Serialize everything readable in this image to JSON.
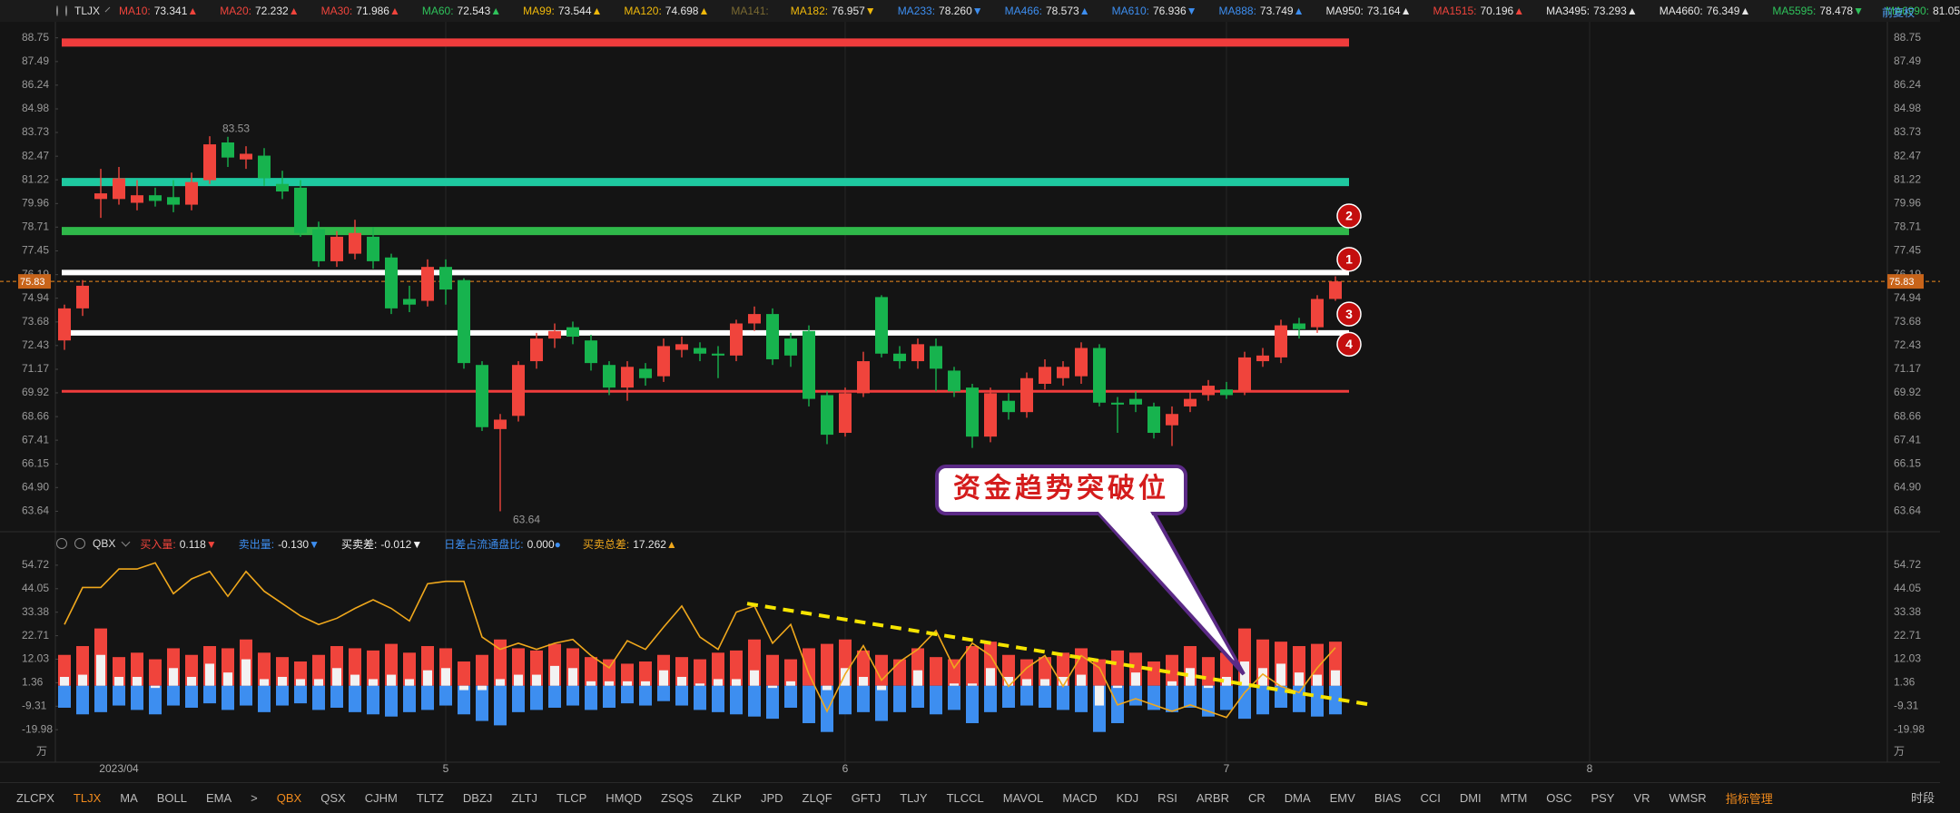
{
  "chart_data": [
    {
      "type": "candlestick",
      "title": "TLJX",
      "up_color": "#f0443c",
      "down_color": "#17b34e",
      "ylim": [
        62.7,
        89.6
      ],
      "yticks": [
        88.75,
        87.49,
        86.24,
        84.98,
        83.73,
        82.47,
        81.22,
        79.96,
        78.71,
        77.45,
        76.19,
        74.94,
        73.68,
        72.43,
        71.17,
        69.92,
        68.66,
        67.41,
        66.15,
        {
          "value": 64.9,
          "label": "64.90"
        },
        63.64
      ],
      "ma_legend": [
        {
          "label": "MA10:",
          "value": "73.341",
          "arrow": "▲",
          "color": "#f0443c"
        },
        {
          "label": "MA20:",
          "value": "72.232",
          "arrow": "▲",
          "color": "#f0443c"
        },
        {
          "label": "MA30:",
          "value": "71.986",
          "arrow": "▲",
          "color": "#f0443c"
        },
        {
          "label": "MA60:",
          "value": "72.543",
          "arrow": "▲",
          "color": "#2fc25b"
        },
        {
          "label": "MA99:",
          "value": "73.544",
          "arrow": "▲",
          "color": "#f0b90b"
        },
        {
          "label": "MA120:",
          "value": "74.698",
          "arrow": "▲",
          "color": "#f0b90b"
        },
        {
          "label": "MA141:",
          "color": "#7a6a32"
        },
        {
          "label": "MA182:",
          "value": "76.957",
          "arrow": "▼",
          "color": "#f0b90b"
        },
        {
          "label": "MA233:",
          "value": "78.260",
          "arrow": "▼",
          "color": "#3d8ef0"
        },
        {
          "label": "MA466:",
          "value": "78.573",
          "arrow": "▲",
          "color": "#3d8ef0"
        },
        {
          "label": "MA610:",
          "value": "76.936",
          "arrow": "▼",
          "color": "#3d8ef0"
        },
        {
          "label": "MA888:",
          "value": "73.749",
          "arrow": "▲",
          "color": "#3d8ef0"
        },
        {
          "label": "MA950:",
          "value": "73.164",
          "arrow": "▲",
          "color": "#e6e6e6"
        },
        {
          "label": "MA1515:",
          "value": "70.196",
          "arrow": "▲",
          "color": "#f0443c"
        },
        {
          "label": "MA3495:",
          "value": "73.293",
          "arrow": "▲",
          "color": "#e6e6e6"
        },
        {
          "label": "MA4660:",
          "value": "76.349",
          "arrow": "▲",
          "color": "#e6e6e6"
        },
        {
          "label": "MA5595:",
          "value": "78.478",
          "arrow": "▼",
          "color": "#2fc25b"
        },
        {
          "label": "MA6990:",
          "value": "81.05",
          "color": "#2fc25b"
        }
      ],
      "open": [
        72.7,
        74.4,
        80.2,
        80.2,
        80.0,
        80.4,
        80.3,
        79.9,
        81.2,
        83.2,
        82.3,
        82.5,
        81.0,
        80.8,
        78.6,
        76.9,
        77.3,
        78.2,
        77.1,
        74.9,
        74.8,
        76.6,
        75.9,
        71.4,
        68.0,
        68.7,
        71.6,
        72.8,
        73.4,
        72.7,
        71.4,
        70.2,
        71.2,
        70.8,
        72.2,
        72.3,
        72.0,
        71.9,
        73.6,
        74.1,
        72.8,
        73.2,
        69.8,
        67.8,
        69.9,
        75.0,
        72.0,
        71.6,
        72.4,
        71.1,
        70.2,
        67.6,
        69.5,
        68.9,
        70.4,
        70.7,
        70.8,
        72.3,
        69.4,
        69.6,
        69.2,
        68.2,
        69.2,
        69.8,
        70.1,
        70.0,
        71.6,
        71.8,
        73.6,
        73.4,
        74.9
      ],
      "high": [
        74.6,
        75.9,
        81.8,
        81.9,
        81.2,
        80.8,
        81.2,
        81.6,
        83.53,
        83.5,
        83.0,
        82.9,
        81.7,
        81.2,
        79.0,
        78.5,
        79.1,
        78.7,
        77.3,
        75.6,
        77.0,
        77.0,
        76.0,
        71.6,
        68.8,
        71.6,
        73.1,
        73.6,
        73.7,
        73.0,
        71.6,
        71.6,
        71.5,
        72.8,
        72.9,
        72.6,
        72.4,
        73.8,
        74.5,
        74.4,
        73.1,
        73.5,
        70.0,
        70.2,
        72.1,
        75.1,
        72.4,
        72.8,
        72.8,
        71.3,
        70.4,
        70.2,
        69.9,
        71.0,
        71.7,
        71.6,
        72.6,
        72.5,
        69.7,
        70.0,
        69.4,
        69.2,
        70.0,
        70.6,
        70.5,
        72.1,
        72.3,
        73.8,
        73.9,
        75.1,
        76.1
      ],
      "low": [
        72.2,
        74.0,
        79.2,
        79.9,
        79.6,
        79.8,
        79.5,
        79.6,
        81.0,
        81.9,
        81.8,
        80.9,
        80.2,
        78.2,
        76.6,
        76.6,
        77.0,
        76.5,
        74.1,
        74.2,
        74.5,
        74.6,
        71.2,
        67.9,
        63.64,
        68.4,
        71.2,
        72.3,
        72.5,
        71.1,
        69.8,
        69.5,
        70.3,
        70.5,
        71.8,
        71.6,
        70.7,
        71.6,
        73.2,
        71.4,
        71.3,
        69.2,
        67.2,
        67.6,
        69.7,
        71.8,
        71.2,
        71.2,
        70.0,
        69.7,
        67.0,
        67.3,
        68.5,
        68.6,
        70.1,
        70.3,
        70.4,
        69.2,
        67.8,
        68.9,
        67.5,
        67.1,
        68.9,
        69.5,
        69.6,
        69.8,
        71.3,
        71.5,
        72.8,
        73.1,
        74.8
      ],
      "close": [
        74.4,
        75.6,
        80.5,
        81.3,
        80.4,
        80.1,
        79.9,
        81.1,
        83.1,
        82.4,
        82.6,
        81.3,
        80.6,
        78.4,
        76.9,
        78.2,
        78.4,
        76.9,
        74.4,
        74.6,
        76.6,
        75.4,
        71.5,
        68.1,
        68.5,
        71.4,
        72.8,
        73.2,
        72.9,
        71.5,
        70.2,
        71.3,
        70.7,
        72.4,
        72.5,
        72.0,
        71.9,
        73.6,
        74.1,
        71.7,
        71.9,
        69.6,
        67.7,
        69.9,
        71.6,
        72.0,
        71.6,
        72.5,
        71.2,
        70.0,
        67.6,
        69.9,
        68.9,
        70.7,
        71.3,
        71.3,
        72.3,
        69.4,
        69.3,
        69.3,
        67.8,
        68.8,
        69.6,
        70.3,
        69.8,
        71.8,
        71.9,
        73.5,
        73.3,
        74.9,
        75.83
      ],
      "price_line_color": "#f08a1c",
      "levels": [
        {
          "value": 88.5,
          "color": "#f03c3c",
          "weight": "bold"
        },
        {
          "value": 81.1,
          "color": "#1ec9a0",
          "weight": "bold"
        },
        {
          "value": 78.5,
          "color": "#2fb84a",
          "weight": "bold"
        },
        {
          "value": 76.3,
          "color": "#ffffff",
          "weight": "normal"
        },
        {
          "value": 73.1,
          "color": "#ffffff",
          "weight": "normal"
        },
        {
          "value": 70.0,
          "color": "#f03c3c",
          "weight": "thin"
        }
      ],
      "markers": [
        {
          "label": "1",
          "value": 77.0
        },
        {
          "label": "2",
          "value": 79.3
        },
        {
          "label": "3",
          "value": 74.1
        },
        {
          "label": "4",
          "value": 72.5
        }
      ],
      "callout": "资金趋势突破位",
      "adjust_button": "前复权"
    },
    {
      "type": "bar",
      "title": "QBX",
      "xlim": [
        -0.5,
        100.4
      ],
      "xticks": [
        {
          "value": 3,
          "label": "2023/04"
        },
        {
          "value": 21,
          "label": "5"
        },
        {
          "value": 43,
          "label": "6"
        },
        {
          "value": 64,
          "label": "7"
        },
        {
          "value": 84,
          "label": "8"
        }
      ],
      "ylim": [
        -33.9,
        58.8
      ],
      "yticks": [
        54.72,
        44.05,
        33.38,
        22.71,
        12.03,
        1.36,
        -9.31,
        -19.98
      ],
      "y_unit": "万",
      "series": [
        {
          "name": "买入量:",
          "current": "0.118",
          "arrow": "▼",
          "color": "#f0443c",
          "values": [
            14,
            18,
            26,
            13,
            15,
            12,
            17,
            14,
            18,
            17,
            21,
            15,
            13,
            11,
            14,
            18,
            17,
            16,
            19,
            15,
            18,
            17,
            11,
            14,
            21,
            17,
            16,
            19,
            17,
            13,
            12,
            10,
            11,
            14,
            13,
            12,
            15,
            16,
            21,
            14,
            12,
            17,
            19,
            21,
            16,
            14,
            12,
            17,
            13,
            12,
            18,
            20,
            14,
            12,
            13,
            15,
            17,
            12,
            16,
            15,
            11,
            14,
            18,
            13,
            15,
            26,
            21,
            20,
            18,
            19,
            20
          ]
        },
        {
          "name": "卖出量:",
          "current": "-0.130",
          "arrow": "▼",
          "color": "#3d8ef0",
          "values": [
            -10,
            -13,
            -12,
            -9,
            -11,
            -13,
            -9,
            -10,
            -8,
            -11,
            -9,
            -12,
            -9,
            -8,
            -11,
            -10,
            -12,
            -13,
            -14,
            -12,
            -11,
            -9,
            -13,
            -16,
            -18,
            -12,
            -11,
            -10,
            -9,
            -11,
            -10,
            -8,
            -9,
            -7,
            -9,
            -11,
            -12,
            -13,
            -14,
            -15,
            -10,
            -17,
            -21,
            -13,
            -12,
            -16,
            -12,
            -10,
            -13,
            -11,
            -17,
            -12,
            -10,
            -9,
            -10,
            -11,
            -12,
            -21,
            -17,
            -9,
            -11,
            -12,
            -10,
            -14,
            -11,
            -15,
            -13,
            -10,
            -12,
            -14,
            -13
          ]
        },
        {
          "name": "买卖差:",
          "current": "-0.012",
          "arrow": "▼",
          "color": "#f2f2f2",
          "values": [
            4,
            5,
            14,
            4,
            4,
            -1,
            8,
            4,
            10,
            6,
            12,
            3,
            4,
            3,
            3,
            8,
            5,
            3,
            5,
            3,
            7,
            8,
            -2,
            -2,
            3,
            5,
            5,
            9,
            8,
            2,
            2,
            2,
            2,
            7,
            4,
            1,
            3,
            3,
            7,
            -1,
            2,
            0,
            -2,
            8,
            4,
            -2,
            0,
            7,
            0,
            1,
            1,
            8,
            4,
            3,
            3,
            4,
            5,
            -9,
            -1,
            6,
            0,
            2,
            8,
            -1,
            4,
            11,
            8,
            10,
            6,
            5,
            7
          ]
        },
        {
          "name": "日差占流通盘比:",
          "current": "0.000",
          "arrow": "●",
          "color": "#3d8ef0",
          "values": null
        },
        {
          "name": "买卖总差:",
          "current": "17.262",
          "arrow": "▲",
          "color": "#f0a81c",
          "line": true,
          "values": [
            27.8,
            44.6,
            44.6,
            53.0,
            53.0,
            55.8,
            41.8,
            48.5,
            51.9,
            40.6,
            51.9,
            42.9,
            37.3,
            31.7,
            27.8,
            30.6,
            35.1,
            39.0,
            35.1,
            29.4,
            46.3,
            47.4,
            47.4,
            22.1,
            16.5,
            19.3,
            16.5,
            19.3,
            21.0,
            13.7,
            8.1,
            20.4,
            16.5,
            26.6,
            36.2,
            22.1,
            16.5,
            33.4,
            36.2,
            19.3,
            27.8,
            5.3,
            -11.6,
            5.3,
            18.2,
            2.5,
            10.9,
            16.5,
            25.0,
            8.1,
            19.3,
            13.7,
            -0.3,
            8.1,
            13.7,
            -0.3,
            13.7,
            8.1,
            -8.7,
            -5.9,
            -8.7,
            -11.6,
            -8.7,
            -11.6,
            -14.4,
            -3.1,
            5.3,
            -0.3,
            -3.1,
            8.1,
            17.3
          ]
        }
      ],
      "trendline": {
        "x": [
          37.6,
          72
        ],
        "values": [
          37.3,
          -8.7
        ],
        "color": "#f5e400"
      }
    }
  ],
  "tabs": [
    "ZLCPX",
    "TLJX",
    "MA",
    "BOLL",
    "EMA",
    ">",
    "QBX",
    "QSX",
    "CJHM",
    "TLTZ",
    "DBZJ",
    "ZLTJ",
    "TLCP",
    "HMQD",
    "ZSQS",
    "ZLKP",
    "JPD",
    "ZLQF",
    "GFTJ",
    "TLJY",
    "TLCCL",
    "MAVOL",
    "MACD",
    "KDJ",
    "RSI",
    "ARBR",
    "CR",
    "DMA",
    "EMV",
    "BIAS",
    "CCI",
    "DMI",
    "MTM",
    "OSC",
    "PSY",
    "VR",
    "WMSR",
    "指标管理"
  ],
  "highlighted_tabs": [
    1,
    6,
    37
  ],
  "highlight_color": "#f08a1c",
  "period_button": "时段"
}
